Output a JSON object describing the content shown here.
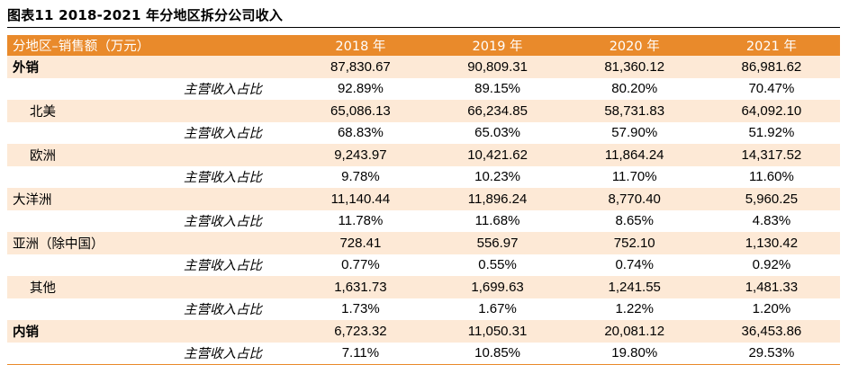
{
  "caption": "图表11    2018-2021 年分地区拆分公司收入",
  "table": {
    "header_label": "分地区–销售额（万元）",
    "years": [
      "2018 年",
      "2019 年",
      "2020 年",
      "2021 年"
    ],
    "rows": [
      {
        "label": "外销",
        "values": [
          "87,830.67",
          "90,809.31",
          "81,360.12",
          "86,981.62"
        ]
      },
      {
        "label": "主营收入占比",
        "values": [
          "92.89%",
          "89.15%",
          "80.20%",
          "70.47%"
        ]
      },
      {
        "label": "北美",
        "values": [
          "65,086.13",
          "66,234.85",
          "58,731.83",
          "64,092.10"
        ]
      },
      {
        "label": "主营收入占比",
        "values": [
          "68.83%",
          "65.03%",
          "57.90%",
          "51.92%"
        ]
      },
      {
        "label": "欧洲",
        "values": [
          "9,243.97",
          "10,421.62",
          "11,864.24",
          "14,317.52"
        ]
      },
      {
        "label": "主营收入占比",
        "values": [
          "9.78%",
          "10.23%",
          "11.70%",
          "11.60%"
        ]
      },
      {
        "label": "大洋洲",
        "values": [
          "11,140.44",
          "11,896.24",
          "8,770.40",
          "5,960.25"
        ]
      },
      {
        "label": "主营收入占比",
        "values": [
          "11.78%",
          "11.68%",
          "8.65%",
          "4.83%"
        ]
      },
      {
        "label": "亚洲（除中国）",
        "values": [
          "728.41",
          "556.97",
          "752.10",
          "1,130.42"
        ]
      },
      {
        "label": "主营收入占比",
        "values": [
          "0.77%",
          "0.55%",
          "0.74%",
          "0.92%"
        ]
      },
      {
        "label": "其他",
        "values": [
          "1,631.73",
          "1,699.63",
          "1,241.55",
          "1,481.33"
        ]
      },
      {
        "label": "主营收入占比",
        "values": [
          "1.73%",
          "1.67%",
          "1.22%",
          "1.20%"
        ]
      },
      {
        "label": "内销",
        "values": [
          "6,723.32",
          "11,050.31",
          "20,081.12",
          "36,453.86"
        ]
      },
      {
        "label": "主营收入占比",
        "values": [
          "7.11%",
          "10.85%",
          "19.80%",
          "29.53%"
        ]
      }
    ]
  },
  "colors": {
    "header_bg": "#e98a2b",
    "band_bg": "#fde9d6"
  }
}
